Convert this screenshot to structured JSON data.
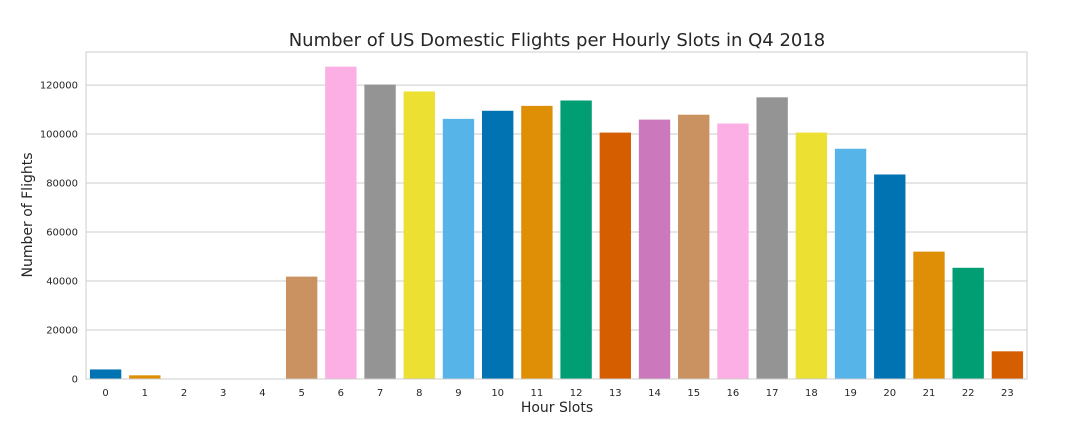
{
  "chart_data": {
    "type": "bar",
    "title": "Number of US Domestic Flights per Hourly Slots in Q4 2018",
    "xlabel": "Hour Slots",
    "ylabel": "Number of Flights",
    "categories": [
      "0",
      "1",
      "2",
      "3",
      "4",
      "5",
      "6",
      "7",
      "8",
      "9",
      "10",
      "11",
      "12",
      "13",
      "14",
      "15",
      "16",
      "17",
      "18",
      "19",
      "20",
      "21",
      "22",
      "23"
    ],
    "values": [
      3900,
      1500,
      100,
      100,
      100,
      41800,
      127500,
      120200,
      117400,
      106200,
      109500,
      111500,
      113700,
      100600,
      105900,
      107900,
      104300,
      115000,
      100600,
      94000,
      83500,
      52000,
      45400,
      11300
    ],
    "ylim": [
      0,
      133500
    ],
    "yticks": [
      0,
      20000,
      40000,
      60000,
      80000,
      100000,
      120000
    ],
    "ytick_labels": [
      "0",
      "20000",
      "40000",
      "60000",
      "80000",
      "100000",
      "120000"
    ],
    "grid": "horizontal",
    "legend": "none",
    "colors": [
      "#0173b2",
      "#de8f05",
      "#029e73",
      "#d55e00",
      "#cc78bc",
      "#ca9161",
      "#fbafe4",
      "#949494",
      "#ece133",
      "#56b4e9"
    ]
  }
}
